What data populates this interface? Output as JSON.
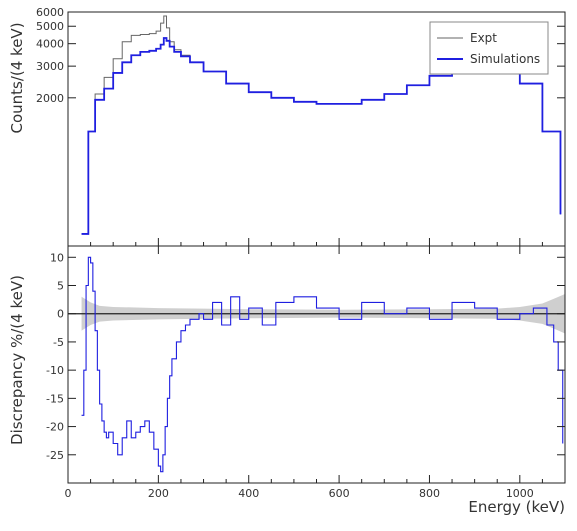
{
  "chart_data": [
    {
      "type": "line",
      "panel": "top",
      "ylabel": "Counts/(4 keV)",
      "xlim": [
        0,
        1100
      ],
      "ylim": [
        0,
        6000
      ],
      "yticks": [
        2000,
        3000,
        4000,
        5000,
        6000
      ],
      "yscale": "log",
      "legend": {
        "placement": "top-right",
        "entries": [
          "Expt",
          "Simulations"
        ]
      },
      "series": [
        {
          "name": "Expt",
          "color": "#666666",
          "x": [
            30,
            45,
            60,
            80,
            100,
            120,
            140,
            160,
            180,
            195,
            205,
            212,
            218,
            225,
            235,
            250,
            270,
            300,
            350,
            400,
            450,
            500,
            550,
            600,
            650,
            700,
            750,
            800,
            850,
            900,
            930,
            945,
            955,
            965,
            1000,
            1050,
            1090
          ],
          "y": [
            350,
            1300,
            2100,
            2600,
            3300,
            4100,
            4450,
            4500,
            4550,
            4700,
            5200,
            5700,
            4900,
            4100,
            3700,
            3450,
            3150,
            2800,
            2400,
            2150,
            2000,
            1900,
            1850,
            1850,
            1950,
            2100,
            2350,
            2650,
            2950,
            3350,
            3650,
            3850,
            3950,
            3400,
            2400,
            1300,
            450
          ]
        },
        {
          "name": "Simulations",
          "color": "#1f1fe0",
          "x": [
            30,
            45,
            60,
            80,
            100,
            120,
            140,
            160,
            180,
            195,
            205,
            212,
            218,
            225,
            235,
            250,
            270,
            300,
            350,
            400,
            450,
            500,
            550,
            600,
            650,
            700,
            750,
            800,
            850,
            900,
            930,
            945,
            955,
            965,
            1000,
            1050,
            1090
          ],
          "y": [
            350,
            1300,
            1950,
            2250,
            2750,
            3150,
            3450,
            3600,
            3650,
            3750,
            3950,
            4300,
            4150,
            3850,
            3600,
            3400,
            3150,
            2800,
            2400,
            2150,
            2000,
            1900,
            1850,
            1850,
            1950,
            2100,
            2350,
            2650,
            2950,
            3350,
            3650,
            3850,
            3950,
            3400,
            2400,
            1300,
            450
          ]
        }
      ]
    },
    {
      "type": "line",
      "panel": "bottom",
      "xlabel": "Energy (keV)",
      "ylabel": "Discrepancy %/(4 keV)",
      "xlim": [
        0,
        1100
      ],
      "ylim": [
        -30,
        12
      ],
      "xticks": [
        0,
        200,
        400,
        600,
        800,
        1000
      ],
      "yticks": [
        -25,
        -20,
        -15,
        -10,
        -5,
        0,
        5,
        10
      ],
      "reference_line": 0,
      "series": [
        {
          "name": "Simulations",
          "color": "#1f1fe0",
          "x": [
            30,
            35,
            40,
            45,
            50,
            55,
            60,
            65,
            70,
            75,
            80,
            85,
            90,
            100,
            110,
            120,
            130,
            140,
            150,
            160,
            170,
            180,
            190,
            200,
            205,
            210,
            215,
            220,
            225,
            230,
            240,
            250,
            260,
            270,
            280,
            290,
            300,
            320,
            340,
            360,
            380,
            400,
            430,
            460,
            500,
            550,
            600,
            650,
            700,
            750,
            800,
            850,
            900,
            950,
            1000,
            1030,
            1060,
            1075,
            1085,
            1095
          ],
          "y": [
            -18,
            -10,
            5,
            10,
            9,
            4,
            -3,
            -10,
            -16,
            -19,
            -21,
            -22,
            -21,
            -23,
            -25,
            -22,
            -19,
            -22,
            -21,
            -20,
            -19,
            -21,
            -24,
            -27,
            -28,
            -25,
            -20,
            -15,
            -11,
            -8,
            -5,
            -3,
            -2,
            -1,
            -1,
            0,
            -1,
            2,
            -2,
            3,
            -1,
            1,
            -2,
            2,
            3,
            1,
            -1,
            2,
            0,
            1,
            -1,
            2,
            1,
            -1,
            0,
            1,
            -2,
            -5,
            -10,
            -23
          ]
        },
        {
          "name": "Uncertainty band",
          "color": "#bbbbbb",
          "x": [
            30,
            50,
            70,
            100,
            200,
            300,
            400,
            600,
            800,
            950,
            1000,
            1050,
            1080,
            1100
          ],
          "y": [
            3.0,
            2.0,
            1.4,
            1.2,
            1.0,
            0.9,
            0.8,
            0.7,
            0.8,
            0.9,
            1.2,
            1.8,
            2.8,
            3.5
          ]
        }
      ]
    }
  ]
}
